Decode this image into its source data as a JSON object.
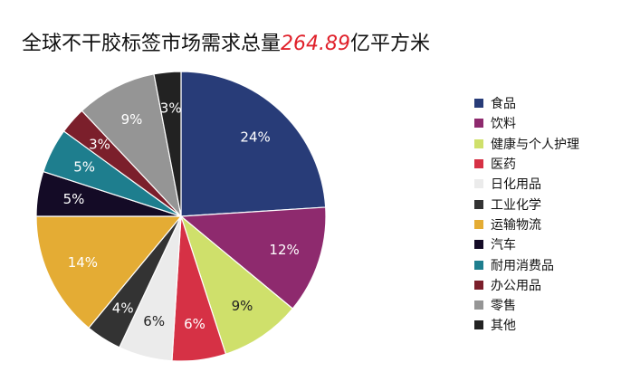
{
  "title": {
    "prefix": "全球不干胶标签市场需求总量",
    "value": "264.89",
    "suffix": "亿平方米"
  },
  "chart_data": {
    "type": "pie",
    "unit": "%",
    "legend_position": "right",
    "slices": [
      {
        "name": "食品",
        "value": 24,
        "label": "24%",
        "color": "#283c78"
      },
      {
        "name": "饮料",
        "value": 12,
        "label": "12%",
        "color": "#8e2a6e"
      },
      {
        "name": "健康与个人护理",
        "value": 9,
        "label": "9%",
        "color": "#cfe06b"
      },
      {
        "name": "医药",
        "value": 6,
        "label": "6%",
        "color": "#d63145"
      },
      {
        "name": "日化用品",
        "value": 6,
        "label": "6%",
        "color": "#ebebeb"
      },
      {
        "name": "工业化学",
        "value": 4,
        "label": "4%",
        "color": "#333333"
      },
      {
        "name": "运输物流",
        "value": 14,
        "label": "14%",
        "color": "#e4ac34"
      },
      {
        "name": "汽车",
        "value": 5,
        "label": "5%",
        "color": "#140b26"
      },
      {
        "name": "耐用消费品",
        "value": 5,
        "label": "5%",
        "color": "#1e7e8e"
      },
      {
        "name": "办公用品",
        "value": 3,
        "label": "3%",
        "color": "#7b1f2b"
      },
      {
        "name": "零售",
        "value": 9,
        "label": "9%",
        "color": "#959595"
      },
      {
        "name": "其他",
        "value": 3,
        "label": "3%",
        "color": "#222222"
      }
    ]
  }
}
